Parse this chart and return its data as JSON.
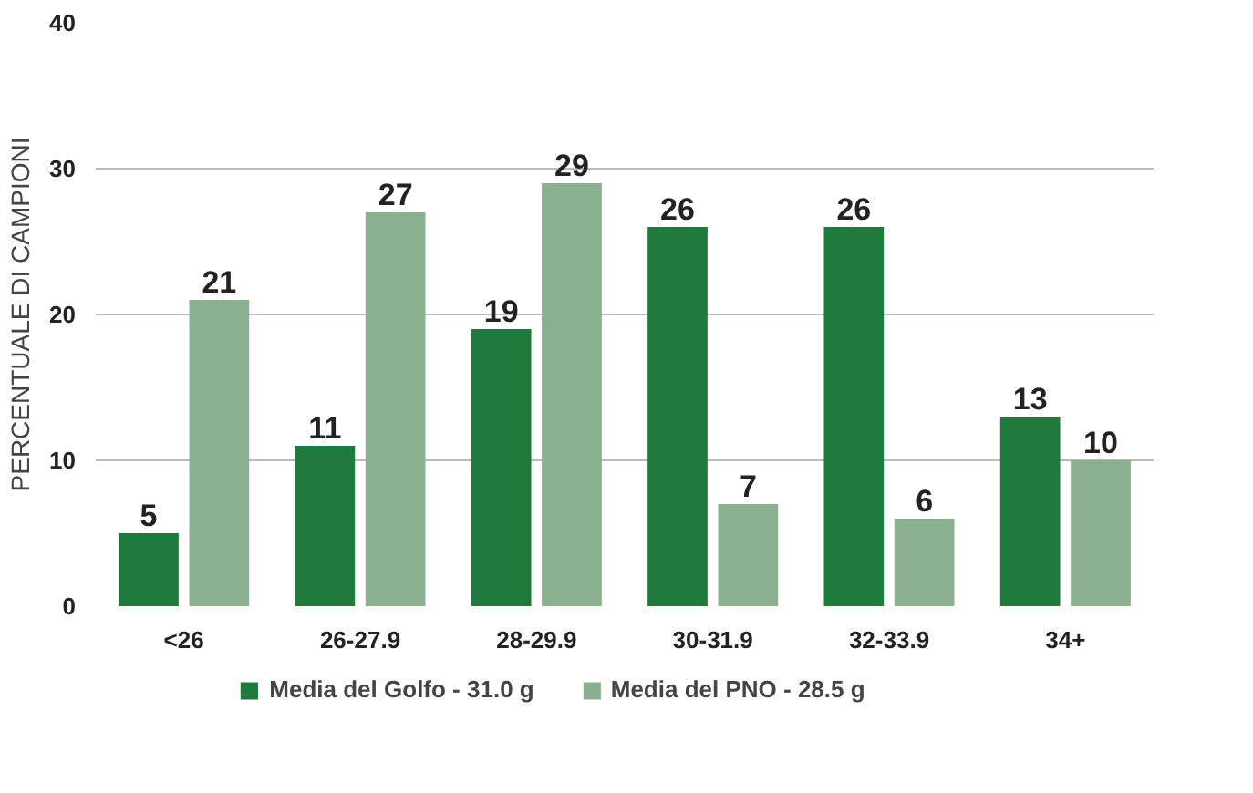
{
  "chart_data": {
    "type": "bar",
    "ylabel": "PERCENTUALE DI CAMPIONI",
    "categories": [
      "<26",
      "26-27.9",
      "28-29.9",
      "30-31.9",
      "32-33.9",
      "34+"
    ],
    "series": [
      {
        "name": "Media del Golfo - 31.0 g",
        "color": "#217a3d",
        "values": [
          5,
          11,
          19,
          26,
          26,
          13
        ]
      },
      {
        "name": "Media del PNO - 28.5 g",
        "color": "#8ab08f",
        "values": [
          21,
          27,
          29,
          7,
          6,
          10
        ]
      }
    ],
    "ylim": [
      0,
      40
    ],
    "yticks": [
      0,
      10,
      20,
      30,
      40
    ],
    "grid": "y",
    "legend": "bottom",
    "data_labels": true
  }
}
